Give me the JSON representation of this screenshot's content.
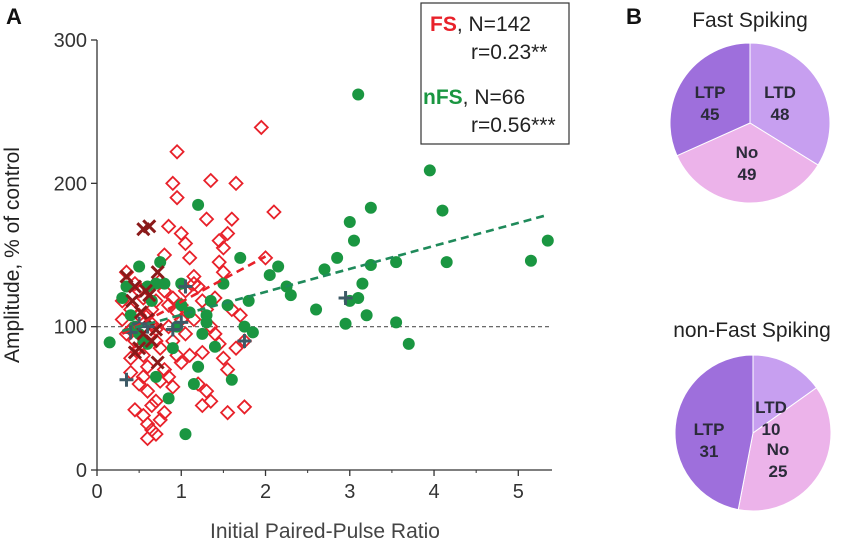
{
  "panels": {
    "a": "A",
    "b": "B"
  },
  "colors": {
    "fs": "#e8212a",
    "fs_dark": "#8a1a1a",
    "nfs": "#1a9641",
    "nfs_dark": "#3d5a66",
    "ref_line": "#555555",
    "ltp": "#9e6fdc",
    "ltd": "#c79ff0",
    "no": "#ecb3ea"
  },
  "chart_data": [
    {
      "type": "scatter",
      "panel": "A",
      "xlabel": "Initial  Paired-Pulse Ratio",
      "ylabel": "Amplitude, % of control",
      "xlim": [
        0,
        5.4
      ],
      "ylim": [
        0,
        300
      ],
      "xticks": [
        0,
        1,
        2,
        3,
        4,
        5
      ],
      "yticks": [
        0,
        100,
        200,
        300
      ],
      "reference_line": 100,
      "legend": {
        "placement": "top-right",
        "fs_name": "FS",
        "fs_n": ", N=142",
        "fs_r": "r=0.23**",
        "nfs_name": "nFS",
        "nfs_n": ", N=66",
        "nfs_r": "r=0.56***"
      },
      "series": [
        {
          "name": "FS",
          "marker": "open-diamond",
          "points": [
            [
              0.35,
              138
            ],
            [
              0.45,
              130
            ],
            [
              0.3,
              118
            ],
            [
              0.4,
              112
            ],
            [
              0.5,
              125
            ],
            [
              0.55,
              120
            ],
            [
              0.6,
              108
            ],
            [
              0.65,
              102
            ],
            [
              0.7,
              98
            ],
            [
              0.35,
              95
            ],
            [
              0.45,
              90
            ],
            [
              0.5,
              85
            ],
            [
              0.55,
              80
            ],
            [
              0.6,
              72
            ],
            [
              0.4,
              68
            ],
            [
              0.5,
              60
            ],
            [
              0.6,
              55
            ],
            [
              0.7,
              48
            ],
            [
              0.45,
              42
            ],
            [
              0.55,
              38
            ],
            [
              0.6,
              32
            ],
            [
              0.65,
              28
            ],
            [
              0.6,
              22
            ],
            [
              0.7,
              25
            ],
            [
              0.75,
              35
            ],
            [
              0.8,
              40
            ],
            [
              0.75,
              132
            ],
            [
              0.8,
              125
            ],
            [
              0.85,
              115
            ],
            [
              0.9,
              120
            ],
            [
              0.95,
              110
            ],
            [
              1.0,
              105
            ],
            [
              0.85,
              100
            ],
            [
              0.9,
              90
            ],
            [
              0.95,
              80
            ],
            [
              1.0,
              75
            ],
            [
              0.8,
              70
            ],
            [
              0.85,
              65
            ],
            [
              0.9,
              58
            ],
            [
              0.75,
              62
            ],
            [
              0.7,
              90
            ],
            [
              0.75,
              85
            ],
            [
              0.8,
              150
            ],
            [
              0.85,
              170
            ],
            [
              0.9,
              200
            ],
            [
              0.95,
              190
            ],
            [
              1.0,
              165
            ],
            [
              0.95,
              222
            ],
            [
              1.05,
              158
            ],
            [
              1.1,
              148
            ],
            [
              1.15,
              135
            ],
            [
              1.2,
              128
            ],
            [
              1.25,
              118
            ],
            [
              1.3,
              112
            ],
            [
              1.35,
              100
            ],
            [
              1.4,
              95
            ],
            [
              1.45,
              88
            ],
            [
              1.5,
              78
            ],
            [
              1.55,
              70
            ],
            [
              1.3,
              55
            ],
            [
              1.35,
              48
            ],
            [
              1.25,
              45
            ],
            [
              1.45,
              145
            ],
            [
              1.5,
              155
            ],
            [
              1.55,
              165
            ],
            [
              1.6,
              175
            ],
            [
              1.35,
              202
            ],
            [
              1.65,
              200
            ],
            [
              1.5,
              138
            ],
            [
              1.6,
              112
            ],
            [
              1.7,
              108
            ],
            [
              1.75,
              90
            ],
            [
              1.65,
              85
            ],
            [
              1.55,
              40
            ],
            [
              1.75,
              44
            ],
            [
              1.2,
              60
            ],
            [
              1.1,
              80
            ],
            [
              1.05,
              95
            ],
            [
              1.15,
              105
            ],
            [
              1.25,
              82
            ],
            [
              1.4,
              120
            ],
            [
              1.45,
              160
            ],
            [
              1.3,
              175
            ],
            [
              1.95,
              239
            ],
            [
              2.1,
              180
            ],
            [
              2.0,
              148
            ],
            [
              1.15,
              130
            ],
            [
              0.3,
              105
            ],
            [
              0.4,
              98
            ],
            [
              0.65,
              112
            ],
            [
              0.7,
              118
            ],
            [
              0.55,
              65
            ],
            [
              0.65,
              45
            ],
            [
              1.0,
              115
            ],
            [
              1.05,
              125
            ],
            [
              0.4,
              78
            ],
            [
              0.5,
              108
            ]
          ]
        },
        {
          "name": "FS (dark)",
          "marker": "x",
          "points": [
            [
              0.55,
              168
            ],
            [
              0.62,
              170
            ],
            [
              0.72,
              138
            ],
            [
              0.35,
              135
            ],
            [
              0.45,
              128
            ],
            [
              0.58,
              125
            ],
            [
              0.62,
              122
            ],
            [
              0.42,
              118
            ],
            [
              0.52,
              110
            ],
            [
              0.6,
              105
            ],
            [
              0.7,
              98
            ],
            [
              0.55,
              95
            ],
            [
              0.65,
              90
            ],
            [
              0.5,
              85
            ],
            [
              0.45,
              82
            ],
            [
              0.72,
              75
            ]
          ]
        },
        {
          "name": "nFS",
          "marker": "filled-circle",
          "points": [
            [
              0.15,
              89
            ],
            [
              0.3,
              120
            ],
            [
              0.35,
              128
            ],
            [
              0.4,
              108
            ],
            [
              0.45,
              100
            ],
            [
              0.5,
              95
            ],
            [
              0.55,
              90
            ],
            [
              0.6,
              88
            ],
            [
              0.65,
              118
            ],
            [
              0.7,
              130
            ],
            [
              0.75,
              145
            ],
            [
              0.7,
              65
            ],
            [
              0.85,
              50
            ],
            [
              0.9,
              85
            ],
            [
              0.95,
              100
            ],
            [
              1.05,
              25
            ],
            [
              1.0,
              115
            ],
            [
              1.1,
              110
            ],
            [
              1.15,
              60
            ],
            [
              1.2,
              72
            ],
            [
              1.25,
              95
            ],
            [
              1.3,
              108
            ],
            [
              1.35,
              118
            ],
            [
              1.2,
              185
            ],
            [
              1.4,
              86
            ],
            [
              1.5,
              130
            ],
            [
              1.55,
              115
            ],
            [
              1.6,
              63
            ],
            [
              1.7,
              148
            ],
            [
              1.75,
              100
            ],
            [
              1.8,
              118
            ],
            [
              1.85,
              96
            ],
            [
              2.05,
              136
            ],
            [
              2.15,
              142
            ],
            [
              2.25,
              128
            ],
            [
              2.3,
              122
            ],
            [
              2.6,
              112
            ],
            [
              2.7,
              140
            ],
            [
              2.85,
              148
            ],
            [
              2.95,
              102
            ],
            [
              3.0,
              173
            ],
            [
              3.05,
              160
            ],
            [
              3.1,
              262
            ],
            [
              3.1,
              120
            ],
            [
              3.15,
              130
            ],
            [
              3.2,
              108
            ],
            [
              3.25,
              183
            ],
            [
              3.25,
              143
            ],
            [
              3.55,
              103
            ],
            [
              3.55,
              145
            ],
            [
              3.7,
              88
            ],
            [
              3.95,
              209
            ],
            [
              4.1,
              181
            ],
            [
              4.15,
              145
            ],
            [
              5.15,
              146
            ],
            [
              5.35,
              160
            ],
            [
              3.0,
              118
            ],
            [
              1.0,
              130
            ],
            [
              0.8,
              130
            ],
            [
              1.3,
              103
            ],
            [
              0.5,
              142
            ],
            [
              0.6,
              128
            ]
          ]
        },
        {
          "name": "nFS (dark)",
          "marker": "plus",
          "points": [
            [
              0.35,
              63
            ],
            [
              0.4,
              96
            ],
            [
              0.5,
              102
            ],
            [
              0.6,
              100
            ],
            [
              0.9,
              98
            ],
            [
              1.0,
              103
            ],
            [
              1.05,
              128
            ],
            [
              1.75,
              90
            ],
            [
              2.95,
              120
            ]
          ]
        }
      ],
      "fits": [
        {
          "name": "FS fit",
          "x": [
            0.3,
            2.0
          ],
          "y": [
            95,
            149
          ]
        },
        {
          "name": "nFS fit",
          "x": [
            0.3,
            5.35
          ],
          "y": [
            97,
            178
          ]
        }
      ]
    },
    {
      "type": "pie",
      "panel": "B",
      "title": "Fast Spiking",
      "slices": [
        {
          "label": "LTP",
          "value": 45
        },
        {
          "label": "LTD",
          "value": 48
        },
        {
          "label": "No",
          "value": 49
        }
      ]
    },
    {
      "type": "pie",
      "panel": "B",
      "title": "non-Fast Spiking",
      "slices": [
        {
          "label": "LTP",
          "value": 31
        },
        {
          "label": "LTD",
          "value": 10
        },
        {
          "label": "No",
          "value": 25
        }
      ]
    }
  ]
}
